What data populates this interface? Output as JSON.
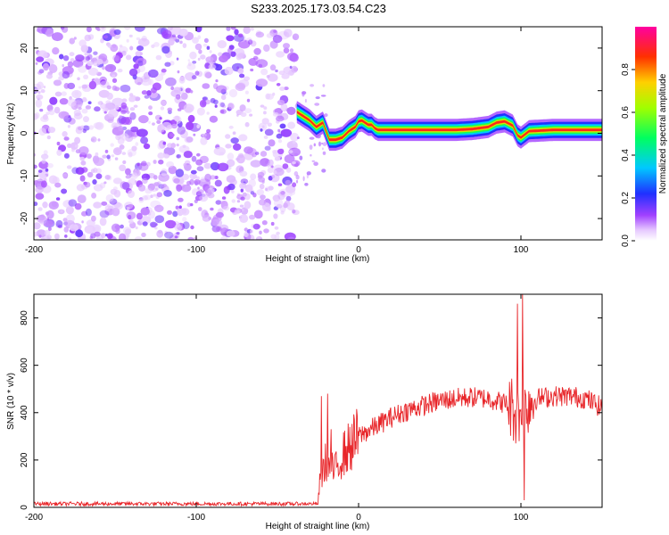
{
  "title": "S233.2025.173.03.54.C23",
  "chart_data": [
    {
      "type": "heatmap",
      "title": "S233.2025.173.03.54.C23",
      "xlabel": "Height of straight line (km)",
      "ylabel": "Frequency (Hz)",
      "xlim": [
        -200,
        150
      ],
      "ylim": [
        -25,
        25
      ],
      "x_ticks": [
        -200,
        -100,
        0,
        100
      ],
      "x_tick_labels": [
        "-200",
        "-100",
        "0",
        "100"
      ],
      "y_ticks": [
        20,
        10,
        0,
        -10,
        -20
      ],
      "y_tick_labels": [
        "20",
        "10",
        "0",
        "-10",
        "-20"
      ],
      "noise_region_x": [
        -200,
        -38
      ],
      "ridge": {
        "x": [
          -38,
          -34,
          -30,
          -26,
          -22,
          -18,
          -14,
          -10,
          -6,
          -2,
          0,
          2,
          4,
          6,
          8,
          10,
          12,
          20,
          40,
          60,
          70,
          80,
          85,
          90,
          95,
          98,
          100,
          105,
          120,
          140,
          150
        ],
        "frequency": [
          5,
          4,
          3,
          1.5,
          2.5,
          -1.5,
          -1.5,
          -1,
          0.5,
          1.5,
          2.8,
          3,
          2.5,
          2,
          2,
          1.2,
          0.8,
          0.8,
          0.8,
          0.8,
          1,
          1.5,
          2.5,
          2.8,
          1.8,
          -0.5,
          -1,
          0.5,
          0.8,
          0.8,
          0.8
        ]
      },
      "colorbar": {
        "label": "Normalized spectral amplitude",
        "range": [
          0,
          1
        ],
        "ticks": [
          0.0,
          0.2,
          0.4,
          0.6,
          0.8
        ],
        "tick_labels": [
          "0.0",
          "0.2",
          "0.4",
          "0.6",
          "0.8"
        ],
        "colormap": "rainbow (purple-blue-cyan-green-yellow-red-magenta)"
      },
      "grid": false
    },
    {
      "type": "line",
      "xlabel": "Height of straight line (km)",
      "ylabel": "SNR (10 * v/v)",
      "xlim": [
        -200,
        150
      ],
      "ylim": [
        0,
        900
      ],
      "x_ticks": [
        -200,
        -100,
        0,
        100
      ],
      "x_tick_labels": [
        "-200",
        "-100",
        "0",
        "100"
      ],
      "y_ticks": [
        0,
        200,
        400,
        600,
        800
      ],
      "y_tick_labels": [
        "0",
        "200",
        "400",
        "600",
        "800"
      ],
      "series": [
        {
          "color": "#e8262a",
          "envelope": {
            "x": [
              -200,
              -100,
              -38,
              -25,
              -24,
              -20,
              -15,
              -10,
              -5,
              0,
              10,
              20,
              30,
              40,
              50,
              60,
              70,
              80,
              90,
              95,
              98,
              100,
              102,
              104,
              110,
              120,
              130,
              140,
              150
            ],
            "y": [
              15,
              15,
              15,
              15,
              100,
              200,
              150,
              220,
              260,
              300,
              340,
              380,
              410,
              430,
              450,
              460,
              465,
              460,
              440,
              420,
              380,
              400,
              420,
              440,
              460,
              470,
              470,
              460,
              420
            ]
          },
          "spikes": [
            {
              "x": -23,
              "y": 470
            },
            {
              "x": -19,
              "y": 480
            },
            {
              "x": -17,
              "y": 330
            },
            {
              "x": 98,
              "y": 860
            },
            {
              "x": 101,
              "y": 900
            },
            {
              "x": 102,
              "y": 30
            }
          ]
        }
      ],
      "grid": false
    }
  ]
}
